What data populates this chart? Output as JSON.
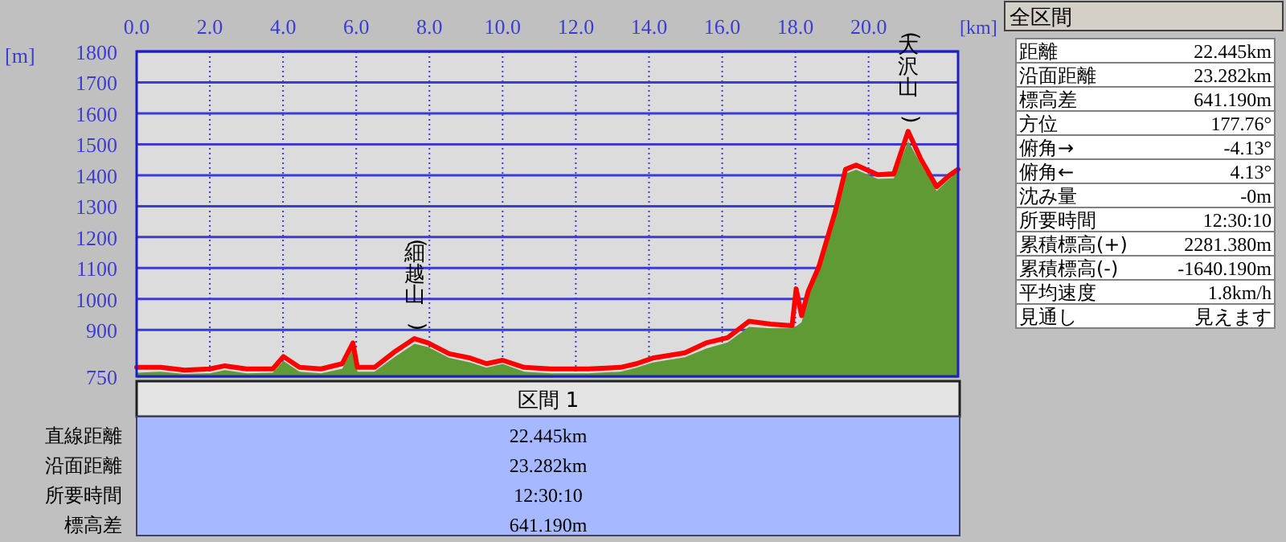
{
  "chart_data": [
    {
      "type": "line",
      "xlabel": "[km]",
      "ylabel": "[m]",
      "xlim": [
        0,
        22.445
      ],
      "ylim": [
        750,
        1800
      ],
      "xticks": [
        {
          "value": 0,
          "label": "0.0"
        },
        {
          "value": 2,
          "label": "2.0"
        },
        {
          "value": 4,
          "label": "4.0"
        },
        {
          "value": 6,
          "label": "6.0"
        },
        {
          "value": 8,
          "label": "8.0"
        },
        {
          "value": 10,
          "label": "10.0"
        },
        {
          "value": 12,
          "label": "12.0"
        },
        {
          "value": 14,
          "label": "14.0"
        },
        {
          "value": 16,
          "label": "16.0"
        },
        {
          "value": 18,
          "label": "18.0"
        },
        {
          "value": 20,
          "label": "20.0"
        }
      ],
      "yticks": [
        750,
        900,
        1000,
        1100,
        1200,
        1300,
        1400,
        1500,
        1600,
        1700,
        1800
      ],
      "grid": true,
      "marker": "none",
      "line_style": "solid",
      "x": [
        0,
        0.66,
        1.31,
        2.0,
        2.41,
        3.0,
        3.72,
        4.01,
        4.45,
        5.04,
        5.62,
        5.91,
        6.03,
        6.5,
        7.08,
        7.59,
        7.96,
        8.54,
        9.12,
        9.56,
        10.0,
        10.59,
        11.32,
        12.34,
        13.22,
        13.66,
        14.1,
        14.98,
        15.56,
        16.15,
        16.73,
        17.32,
        17.91,
        18.02,
        18.17,
        18.35,
        18.64,
        19.08,
        19.37,
        19.66,
        20.25,
        20.69,
        21.08,
        21.42,
        21.86,
        22.23,
        22.445
      ],
      "series": [
        {
          "type": "area",
          "color": "#5f9a35",
          "values": [
            762,
            765,
            758,
            760,
            770,
            760,
            762,
            800,
            765,
            760,
            775,
            840,
            765,
            765,
            815,
            855,
            845,
            810,
            795,
            778,
            790,
            765,
            760,
            760,
            765,
            778,
            795,
            812,
            840,
            860,
            910,
            905,
            905,
            912,
            925,
            1010,
            1090,
            1265,
            1405,
            1418,
            1388,
            1390,
            1510,
            1438,
            1349,
            1390,
            1410
          ]
        },
        {
          "type": "line",
          "color": "#ff0000",
          "values": [
            779,
            779,
            770,
            774,
            784,
            774,
            774,
            814,
            779,
            774,
            791,
            858,
            779,
            779,
            832,
            872,
            858,
            823,
            809,
            791,
            802,
            779,
            774,
            774,
            779,
            791,
            809,
            826,
            858,
            875,
            928,
            919,
            914,
            1033,
            946,
            1025,
            1104,
            1279,
            1419,
            1433,
            1402,
            1405,
            1542,
            1454,
            1363,
            1402,
            1419
          ]
        }
      ],
      "annotations": [
        {
          "text": "(細越山)",
          "x": 7.59,
          "y": 872
        },
        {
          "text": "(大沢山)",
          "x": 21.08,
          "y": 1542
        }
      ]
    },
    {
      "type": "other",
      "title": "全区間",
      "annotations": [
        "距離",
        "22.445km",
        "沿面距離",
        "23.282km",
        "標高差",
        "641.190m",
        "方位",
        "177.76°",
        "俯角→",
        "-4.13°",
        "俯角←",
        "4.13°",
        "沈み量",
        "-0m",
        "所要時間",
        "12:30:10",
        "累積標高(+)",
        "2281.380m",
        "累積標高(-)",
        "-1640.190m",
        "平均速度",
        "1.8km/h",
        "見通し",
        "見えます"
      ]
    },
    {
      "type": "other",
      "title": "区間 1",
      "annotations": [
        "直線距離",
        "22.445km",
        "沿面距離",
        "23.282km",
        "所要時間",
        "12:30:10",
        "標高差",
        "641.190m"
      ]
    }
  ]
}
